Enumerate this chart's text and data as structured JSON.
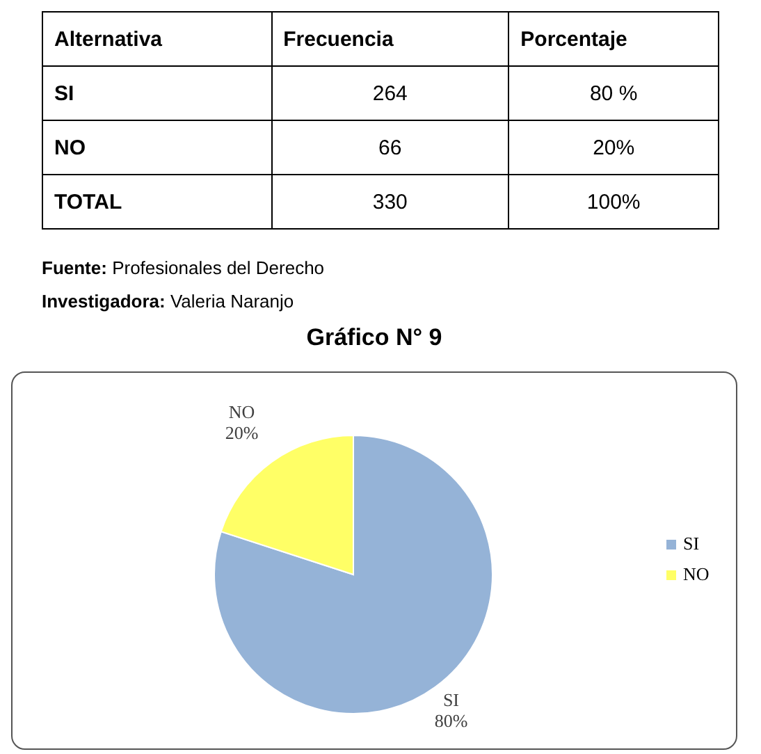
{
  "chart_data": [
    {
      "type": "other",
      "categories": [
        "Alternativa",
        "Frecuencia",
        "Porcentaje"
      ],
      "y_categories": [
        "SI",
        "NO",
        "TOTAL"
      ],
      "cell_labels": [
        [
          "264",
          "80 %"
        ],
        [
          "66",
          "20%"
        ],
        [
          "330",
          "100%"
        ]
      ],
      "annotations": [
        "Fuente: Profesionales del Derecho",
        "Investigadora: Valeria Naranjo"
      ]
    },
    {
      "type": "pie",
      "title": "Gráfico N° 9",
      "categories": [
        "SI",
        "NO"
      ],
      "values": [
        80,
        20
      ],
      "colors": [
        "#95b3d7",
        "#ffff66"
      ],
      "value_labels": [
        "80%",
        "20%"
      ],
      "legend": "right"
    }
  ]
}
